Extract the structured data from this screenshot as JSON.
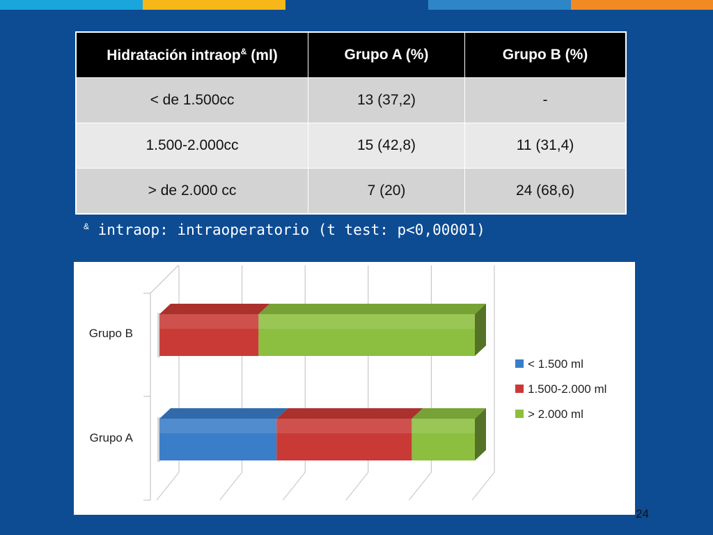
{
  "slide": {
    "top_bar_colors": [
      "#1aa6dc",
      "#f7b718",
      "#0d4c93",
      "#2e86c8",
      "#f28a24"
    ],
    "bottom_bar_color": "#e8452d",
    "page_number": "24"
  },
  "table": {
    "headers": {
      "col1_main": "Hidratación intraop",
      "col1_sup": "&",
      "col1_unit": " (ml)",
      "col2": "Grupo A (%)",
      "col3": "Grupo B (%)"
    },
    "rows": [
      [
        "< de 1.500cc",
        "13 (37,2)",
        "-"
      ],
      [
        "1.500-2.000cc",
        "15 (42,8)",
        "11 (31,4)"
      ],
      [
        "> de 2.000 cc",
        "7 (20)",
        "24 (68,6)"
      ]
    ]
  },
  "footnote": {
    "sup": "&",
    "text": " intraop: intraoperatorio (t test: p<0,00001)"
  },
  "chart_data": {
    "type": "bar",
    "orientation": "horizontal",
    "stacked": true,
    "three_d": true,
    "categories": [
      "Grupo A",
      "Grupo B"
    ],
    "series": [
      {
        "name": "< 1.500 ml",
        "values": [
          13,
          0
        ],
        "color": "#3a7dc9"
      },
      {
        "name": "1.500-2.000 ml",
        "values": [
          15,
          11
        ],
        "color": "#c93a36"
      },
      {
        "name": "> 2.000 ml",
        "values": [
          7,
          24
        ],
        "color": "#8cbf3f"
      }
    ],
    "legend_position": "right",
    "grid": true,
    "gridline_count": 6
  }
}
